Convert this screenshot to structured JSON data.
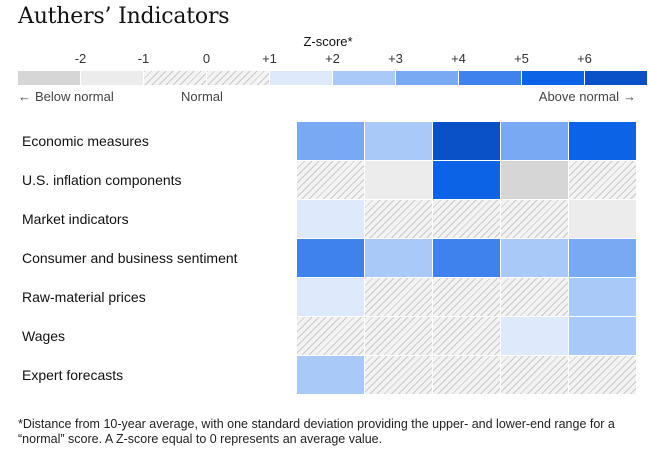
{
  "chart_data": {
    "type": "heatmap",
    "title": "Authers’ Indicators",
    "legend": {
      "title": "Z-score*",
      "ticks": [
        "-2",
        "-1",
        "0",
        "+1",
        "+2",
        "+3",
        "+4",
        "+5",
        "+6"
      ],
      "below_label": "Below normal",
      "normal_label": "Normal",
      "above_label": "Above normal",
      "below_arrow": "←",
      "above_arrow": "→",
      "bins": [
        {
          "range": [
            -3,
            -2
          ],
          "color": "#d6d6d6"
        },
        {
          "range": [
            -2,
            -1
          ],
          "color": "#ececec"
        },
        {
          "range": [
            -1,
            0
          ],
          "color": "hatch"
        },
        {
          "range": [
            0,
            1
          ],
          "color": "hatch"
        },
        {
          "range": [
            1,
            2
          ],
          "color": "#deeafc"
        },
        {
          "range": [
            2,
            3
          ],
          "color": "#a9c9f8"
        },
        {
          "range": [
            3,
            4
          ],
          "color": "#7aa9f3"
        },
        {
          "range": [
            4,
            5
          ],
          "color": "#3f82ee"
        },
        {
          "range": [
            5,
            6
          ],
          "color": "#0d63e6"
        },
        {
          "range": [
            6,
            7
          ],
          "color": "#0a50c6"
        }
      ]
    },
    "rows": [
      "Economic measures",
      "U.S. inflation components",
      "Market indicators",
      "Consumer and business sentiment",
      "Raw-material prices",
      "Wages",
      "Expert forecasts"
    ],
    "columns": 5,
    "values": [
      [
        3.5,
        2.5,
        6.5,
        3.5,
        5.5
      ],
      [
        0,
        -1.5,
        5.5,
        -2.5,
        0
      ],
      [
        1.5,
        0,
        0,
        0,
        -1.5
      ],
      [
        4.5,
        2.5,
        4.5,
        2.5,
        3.5
      ],
      [
        1.5,
        0,
        0,
        0,
        2.5
      ],
      [
        0,
        0,
        0,
        1.5,
        2.5
      ],
      [
        2.5,
        0,
        0,
        0,
        0
      ]
    ]
  },
  "footnote": "*Distance from 10-year average, with one standard deviation providing the upper- and lower-end range for a “normal” score. A Z-score equal to 0 represents an average value."
}
